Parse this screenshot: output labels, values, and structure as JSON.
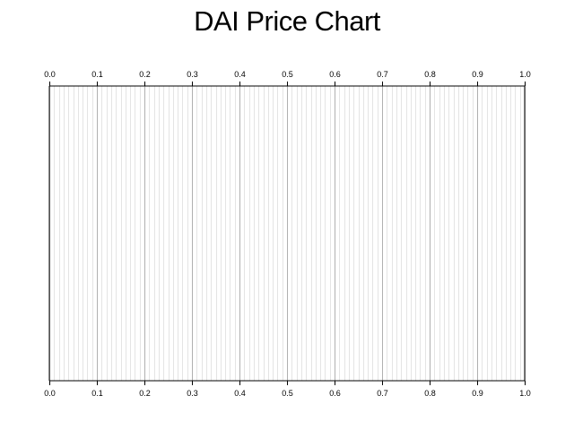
{
  "chart_data": {
    "type": "line",
    "title": "DAI Price Chart",
    "xlabel": "",
    "ylabel": "",
    "xlim": [
      0.0,
      1.0
    ],
    "x_ticks": [
      "0.0",
      "0.1",
      "0.2",
      "0.3",
      "0.4",
      "0.5",
      "0.6",
      "0.7",
      "0.8",
      "0.9",
      "1.0"
    ],
    "x_tick_values": [
      0.0,
      0.1,
      0.2,
      0.3,
      0.4,
      0.5,
      0.6,
      0.7,
      0.8,
      0.9,
      1.0
    ],
    "minor_tick_step": 0.01,
    "grid": true,
    "series": [],
    "colors": {
      "major_grid": "#b0b0b0",
      "minor_grid": "#e4e4e4",
      "axis": "#000000"
    }
  }
}
